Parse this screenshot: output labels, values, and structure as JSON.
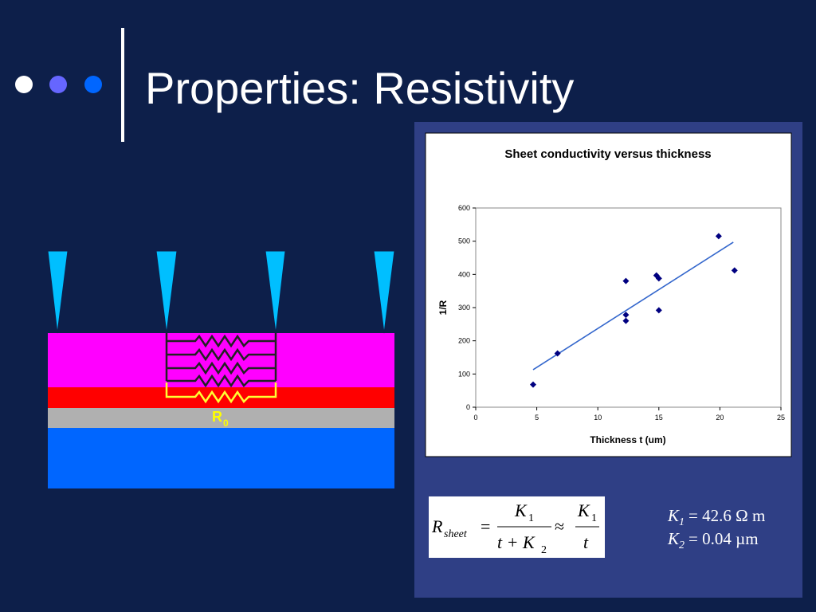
{
  "title": "Properties: Resistivity",
  "diagram": {
    "label": "R",
    "label_sub": "0"
  },
  "chart_data": {
    "type": "scatter",
    "title": "Sheet conductivity versus thickness",
    "x_label": "Thickness t (um)",
    "y_label": "1/R",
    "xlim": [
      0,
      25
    ],
    "xticks": [
      0,
      5,
      10,
      15,
      20,
      25
    ],
    "ylim": [
      0,
      600
    ],
    "yticks": [
      0,
      100,
      200,
      300,
      400,
      500,
      600
    ],
    "series": [
      {
        "color": "#000080",
        "x": [
          4.7,
          6.7,
          12.3,
          12.3,
          12.3,
          14.8,
          15.0,
          15.0,
          19.9,
          21.2
        ],
        "values": [
          68,
          162,
          380,
          278,
          260,
          397,
          388,
          292,
          515,
          412
        ]
      }
    ],
    "trendline": {
      "color": "#3366cc",
      "x": [
        4.7,
        21.1
      ],
      "y": [
        113,
        497
      ]
    }
  },
  "formula": {
    "lhs": "R",
    "lhs_sub": "sheet",
    "eq": "=",
    "num1": "K",
    "num1_sub": "1",
    "den1": "t + K",
    "den1_sub": "2",
    "approx": "≈",
    "num2": "K",
    "num2_sub": "1",
    "den2": "t"
  },
  "constants": [
    {
      "symbol": "K",
      "sub": "1",
      "value": "= 42.6 Ω m"
    },
    {
      "symbol": "K",
      "sub": "2",
      "value": "= 0.04 µm"
    }
  ]
}
